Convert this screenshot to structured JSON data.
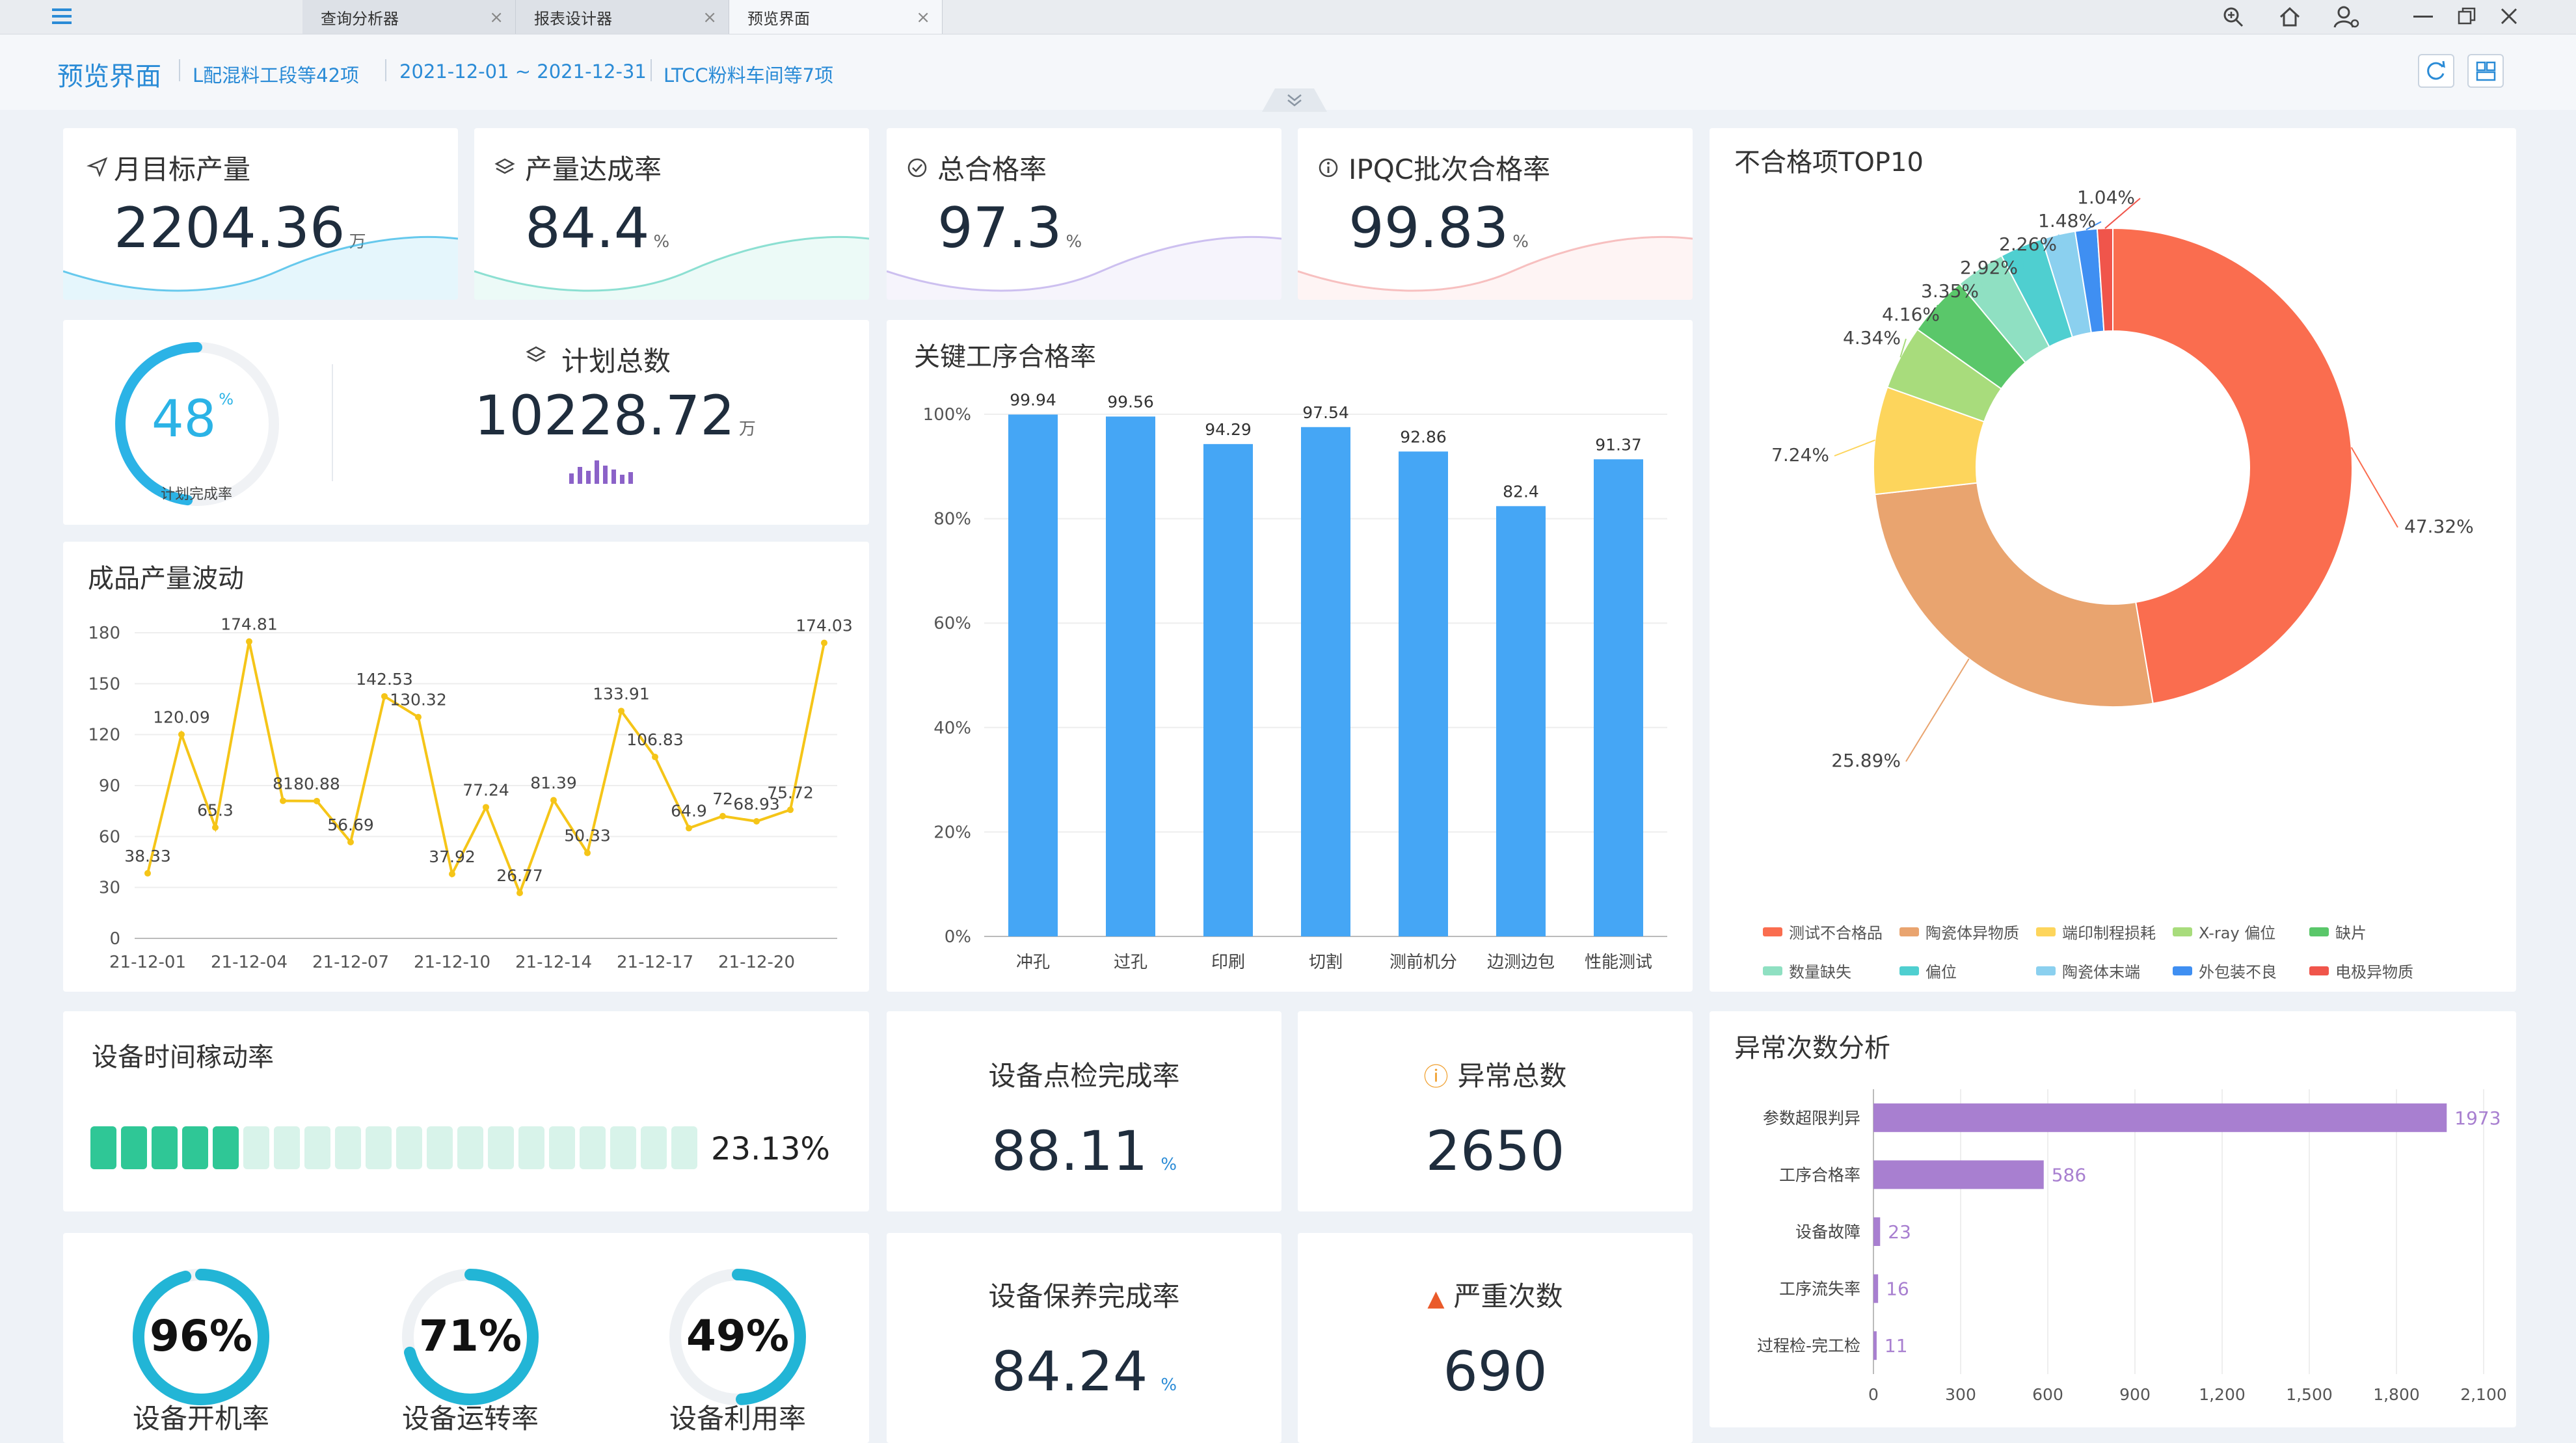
{
  "tabs": [
    {
      "label": "查询分析器"
    },
    {
      "label": "报表设计器"
    },
    {
      "label": "预览界面"
    }
  ],
  "crumb": {
    "title": "预览界面",
    "f1": "L配混料工段等42项",
    "f2": "2021-12-01 ~ 2021-12-31",
    "f3": "LTCC粉料车间等7项"
  },
  "kpis": [
    {
      "label": "月目标产量",
      "value": "2204.36",
      "unit": "万",
      "color": "#2bb3e6"
    },
    {
      "label": "产量达成率",
      "value": "84.4",
      "unit": "%",
      "color": "#5fd3c1"
    },
    {
      "label": "总合格率",
      "value": "97.3",
      "unit": "%",
      "color": "#b9a6e9"
    },
    {
      "label": "IPQC批次合格率",
      "value": "99.83",
      "unit": "%",
      "color": "#f4a6a6"
    }
  ],
  "plan": {
    "gauge_value": "48",
    "gauge_unit": "%",
    "gauge_label": "计划完成率",
    "gauge_fraction": 0.48,
    "title": "计划总数",
    "value": "10228.72",
    "unit": "万"
  },
  "line_chart": {
    "title": "成品产量波动",
    "chart_data": {
      "type": "line",
      "ylim": [
        0,
        180
      ],
      "yticks": [
        "0",
        "30",
        "60",
        "90",
        "120",
        "150",
        "180"
      ],
      "xticks": [
        "21-12-01",
        "21-12-04",
        "21-12-07",
        "21-12-10",
        "21-12-14",
        "21-12-17",
        "21-12-20"
      ],
      "values": [
        38.33,
        120.09,
        65.3,
        174.81,
        81,
        80.88,
        56.69,
        142.53,
        130.32,
        37.92,
        77.24,
        26.77,
        81.39,
        50.33,
        133.91,
        106.83,
        64.9,
        72,
        68.93,
        75.72,
        174.03
      ],
      "labels": [
        "38.33",
        "120.09",
        "65.3",
        "174.81",
        "81",
        "80.88",
        "56.69",
        "142.53",
        "130.32",
        "37.92",
        "77.24",
        "26.77",
        "81.39",
        "50.33",
        "133.91",
        "106.83",
        "64.9",
        "72",
        "68.93",
        "75.72",
        "174.03"
      ]
    }
  },
  "bar_chart": {
    "title": "关键工序合格率",
    "chart_data": {
      "type": "bar",
      "categories": [
        "冲孔",
        "过孔",
        "印刷",
        "切割",
        "测前机分",
        "边测边包",
        "性能测试"
      ],
      "values": [
        99.94,
        99.56,
        94.29,
        97.54,
        92.86,
        82.4,
        91.37
      ],
      "labels": [
        "99.94",
        "99.56",
        "94.29",
        "97.54",
        "92.86",
        "82.4",
        "91.37"
      ],
      "ylim": [
        0,
        100
      ],
      "yticks": [
        "0%",
        "20%",
        "40%",
        "60%",
        "80%",
        "100%"
      ],
      "color": "#45a6f5"
    }
  },
  "donut_chart": {
    "title": "不合格项TOP10",
    "chart_data": {
      "type": "pie",
      "slices": [
        {
          "name": "测试不合格品",
          "value": 47.32,
          "label": "47.32%",
          "color": "#fa6d4f"
        },
        {
          "name": "陶瓷体异物质",
          "value": 25.89,
          "label": "25.89%",
          "color": "#e9a46f"
        },
        {
          "name": "端印制程损耗",
          "value": 7.24,
          "label": "7.24%",
          "color": "#fdd55c"
        },
        {
          "name": "X-ray 偏位",
          "value": 4.34,
          "label": "4.34%",
          "color": "#a8dc7c"
        },
        {
          "name": "缺片",
          "value": 4.16,
          "label": "4.16%",
          "color": "#5ac76a"
        },
        {
          "name": "数量缺失",
          "value": 3.35,
          "label": "3.35%",
          "color": "#8fe0c2"
        },
        {
          "name": "偏位",
          "value": 2.92,
          "label": "2.92%",
          "color": "#4fcfd0"
        },
        {
          "name": "陶瓷体末端",
          "value": 2.26,
          "label": "2.26%",
          "color": "#8bd0ef"
        },
        {
          "name": "外包装不良",
          "value": 1.48,
          "label": "1.48%",
          "color": "#3f8ff2"
        },
        {
          "name": "电极异物质",
          "value": 1.04,
          "label": "1.04%",
          "color": "#f0554b"
        }
      ]
    }
  },
  "equip_time": {
    "title": "设备时间稼动率",
    "value": "23.13%",
    "fraction": 0.2313,
    "segments": 20
  },
  "spot_check": {
    "title": "设备点检完成率",
    "value": "88.11",
    "unit": "%"
  },
  "abnormal": {
    "title": "异常总数",
    "value": "2650"
  },
  "maint": {
    "title": "设备保养完成率",
    "value": "84.24",
    "unit": "%"
  },
  "severe": {
    "title": "严重次数",
    "value": "690"
  },
  "rings": [
    {
      "value": "96%",
      "label": "设备开机率",
      "fraction": 0.96
    },
    {
      "value": "71%",
      "label": "设备运转率",
      "fraction": 0.71
    },
    {
      "value": "49%",
      "label": "设备利用率",
      "fraction": 0.49
    }
  ],
  "hbar_chart": {
    "title": "异常次数分析",
    "chart_data": {
      "type": "bar",
      "orientation": "horizontal",
      "categories": [
        "参数超限判异",
        "工序合格率",
        "设备故障",
        "工序流失率",
        "过程检-完工检"
      ],
      "values": [
        1973,
        586,
        23,
        16,
        11
      ],
      "labels": [
        "1973",
        "586",
        "23",
        "16",
        "11"
      ],
      "xlim": [
        0,
        2100
      ],
      "xticks": [
        "0",
        "300",
        "600",
        "900",
        "1,200",
        "1,500",
        "1,800",
        "2,100"
      ],
      "color": "#a87fd0"
    }
  }
}
